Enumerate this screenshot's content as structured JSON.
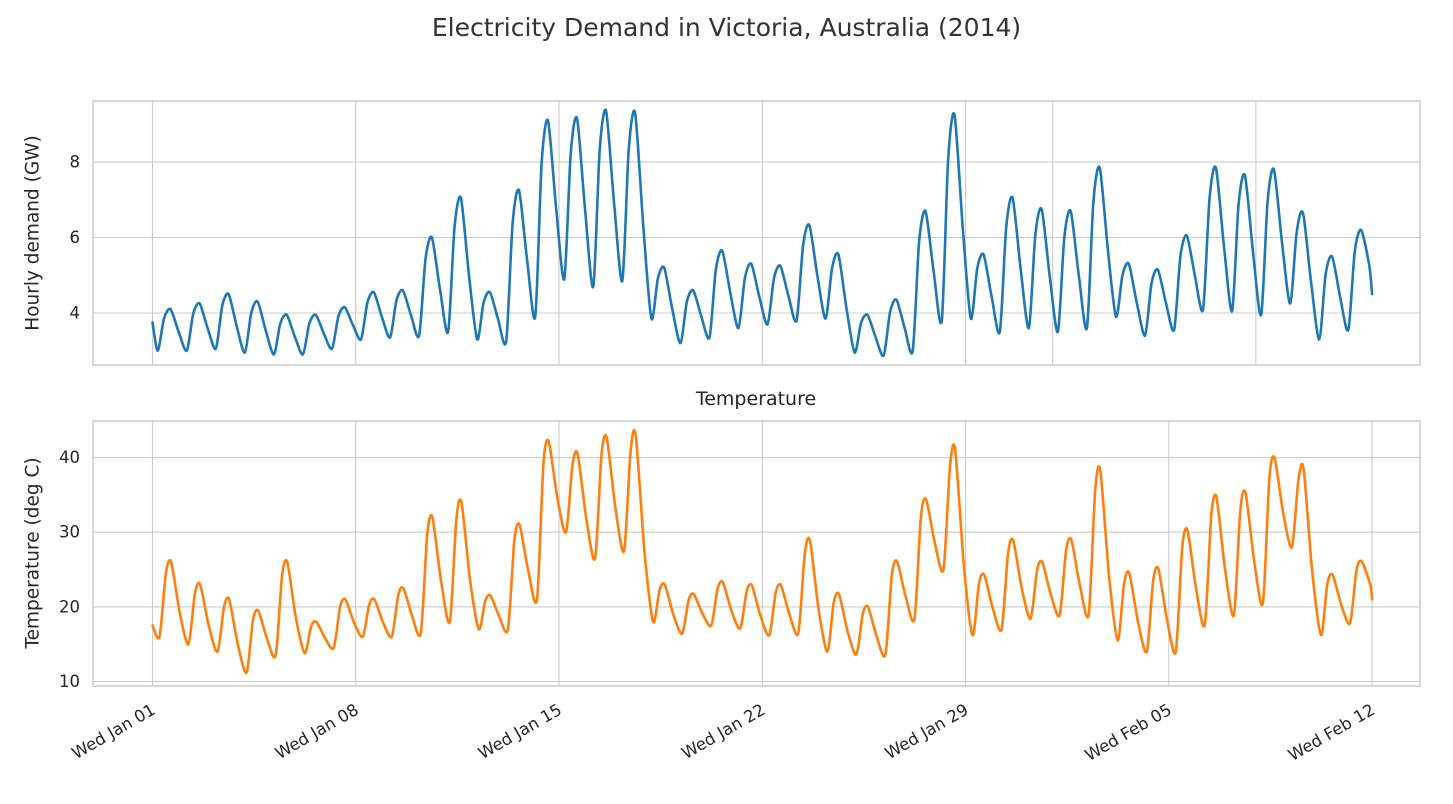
{
  "figure": {
    "title": "Electricity Demand in Victoria, Australia (2014)",
    "background_color": "#ffffff",
    "grid_color": "#cccccc",
    "spine_color": "#c7c7c7",
    "text_color": "#262626"
  },
  "x_axis": {
    "tick_labels": [
      "Wed Jan 01",
      "Wed Jan 08",
      "Wed Jan 15",
      "Wed Jan 22",
      "Wed Jan 29",
      "Wed Feb 05",
      "Wed Feb 12"
    ],
    "tick_days": [
      0,
      7,
      14,
      21,
      28,
      35,
      42
    ],
    "xlim_days": [
      -2.05,
      43.65
    ],
    "label_rotation_deg": 30
  },
  "chart_data": [
    {
      "type": "line",
      "name": "hourly-demand",
      "title": "",
      "ylabel": "Hourly demand (GW)",
      "unit": "GW",
      "color": "#1f77b4",
      "yticks": [
        4,
        6,
        8
      ],
      "ylim": [
        2.62,
        9.62
      ],
      "grid_on": true,
      "grid_days": [
        0,
        7,
        14,
        21,
        28,
        31,
        38
      ],
      "legend": "none",
      "start_value": 3.75,
      "end_day": 42.0,
      "end_value": 4.5,
      "daily_envelope": [
        {
          "date": "Jan 01",
          "min": 3.0,
          "max": 4.1
        },
        {
          "date": "Jan 02",
          "min": 3.0,
          "max": 4.25
        },
        {
          "date": "Jan 03",
          "min": 3.05,
          "max": 4.5
        },
        {
          "date": "Jan 04",
          "min": 2.95,
          "max": 4.3
        },
        {
          "date": "Jan 05",
          "min": 2.9,
          "max": 3.95
        },
        {
          "date": "Jan 06",
          "min": 2.9,
          "max": 3.95
        },
        {
          "date": "Jan 07",
          "min": 3.05,
          "max": 4.15
        },
        {
          "date": "Jan 08",
          "min": 3.3,
          "max": 4.55
        },
        {
          "date": "Jan 09",
          "min": 3.35,
          "max": 4.6
        },
        {
          "date": "Jan 10",
          "min": 3.4,
          "max": 6.0
        },
        {
          "date": "Jan 11",
          "min": 3.5,
          "max": 7.05
        },
        {
          "date": "Jan 12",
          "min": 3.3,
          "max": 4.55
        },
        {
          "date": "Jan 13",
          "min": 3.25,
          "max": 7.25
        },
        {
          "date": "Jan 14",
          "min": 3.9,
          "max": 9.1
        },
        {
          "date": "Jan 15",
          "min": 4.9,
          "max": 9.15
        },
        {
          "date": "Jan 16",
          "min": 4.7,
          "max": 9.35
        },
        {
          "date": "Jan 17",
          "min": 4.85,
          "max": 9.3
        },
        {
          "date": "Jan 18",
          "min": 3.85,
          "max": 5.2
        },
        {
          "date": "Jan 19",
          "min": 3.2,
          "max": 4.6
        },
        {
          "date": "Jan 20",
          "min": 3.35,
          "max": 5.65
        },
        {
          "date": "Jan 21",
          "min": 3.6,
          "max": 5.3
        },
        {
          "date": "Jan 22",
          "min": 3.7,
          "max": 5.25
        },
        {
          "date": "Jan 23",
          "min": 3.8,
          "max": 6.33
        },
        {
          "date": "Jan 24",
          "min": 3.85,
          "max": 5.55
        },
        {
          "date": "Jan 25",
          "min": 2.95,
          "max": 3.95
        },
        {
          "date": "Jan 26",
          "min": 2.87,
          "max": 4.35
        },
        {
          "date": "Jan 27",
          "min": 3.0,
          "max": 6.7
        },
        {
          "date": "Jan 28",
          "min": 3.8,
          "max": 9.25
        },
        {
          "date": "Jan 29",
          "min": 3.85,
          "max": 5.55
        },
        {
          "date": "Jan 30",
          "min": 3.5,
          "max": 7.05
        },
        {
          "date": "Jan 31",
          "min": 3.6,
          "max": 6.75
        },
        {
          "date": "Feb 01",
          "min": 3.5,
          "max": 6.7
        },
        {
          "date": "Feb 02",
          "min": 3.6,
          "max": 7.85
        },
        {
          "date": "Feb 03",
          "min": 3.9,
          "max": 5.3
        },
        {
          "date": "Feb 04",
          "min": 3.4,
          "max": 5.15
        },
        {
          "date": "Feb 05",
          "min": 3.55,
          "max": 6.05
        },
        {
          "date": "Feb 06",
          "min": 4.1,
          "max": 7.85
        },
        {
          "date": "Feb 07",
          "min": 4.05,
          "max": 7.65
        },
        {
          "date": "Feb 08",
          "min": 3.95,
          "max": 7.8
        },
        {
          "date": "Feb 09",
          "min": 4.25,
          "max": 6.65
        },
        {
          "date": "Feb 10",
          "min": 3.3,
          "max": 5.5
        },
        {
          "date": "Feb 11",
          "min": 3.55,
          "max": 6.2
        }
      ]
    },
    {
      "type": "line",
      "name": "temperature",
      "title": "Temperature",
      "ylabel": "Temperature (deg C)",
      "unit": "deg C",
      "color": "#ff7f0e",
      "yticks": [
        10,
        20,
        30,
        40
      ],
      "ylim": [
        9.4,
        44.9
      ],
      "grid_on": true,
      "grid_days": [
        0,
        7,
        14,
        21,
        28,
        35,
        42
      ],
      "legend": "none",
      "start_value": 17.5,
      "end_day": 42.0,
      "end_value": 21.0,
      "daily_envelope": [
        {
          "date": "Jan 01",
          "min": 16.0,
          "max": 26.0
        },
        {
          "date": "Jan 02",
          "min": 15.0,
          "max": 23.0
        },
        {
          "date": "Jan 03",
          "min": 14.0,
          "max": 21.0
        },
        {
          "date": "Jan 04",
          "min": 11.2,
          "max": 19.5
        },
        {
          "date": "Jan 05",
          "min": 13.5,
          "max": 26.0
        },
        {
          "date": "Jan 06",
          "min": 13.8,
          "max": 18.0
        },
        {
          "date": "Jan 07",
          "min": 14.5,
          "max": 21.0
        },
        {
          "date": "Jan 08",
          "min": 16.0,
          "max": 21.0
        },
        {
          "date": "Jan 09",
          "min": 16.0,
          "max": 22.5
        },
        {
          "date": "Jan 10",
          "min": 16.5,
          "max": 32.0
        },
        {
          "date": "Jan 11",
          "min": 18.0,
          "max": 34.0
        },
        {
          "date": "Jan 12",
          "min": 17.0,
          "max": 21.5
        },
        {
          "date": "Jan 13",
          "min": 17.0,
          "max": 31.0
        },
        {
          "date": "Jan 14",
          "min": 21.0,
          "max": 42.2
        },
        {
          "date": "Jan 15",
          "min": 30.0,
          "max": 40.5
        },
        {
          "date": "Jan 16",
          "min": 26.5,
          "max": 42.7
        },
        {
          "date": "Jan 17",
          "min": 27.5,
          "max": 43.0
        },
        {
          "date": "Jan 18",
          "min": 18.0,
          "max": 23.0
        },
        {
          "date": "Jan 19",
          "min": 16.4,
          "max": 21.7
        },
        {
          "date": "Jan 20",
          "min": 17.5,
          "max": 23.3
        },
        {
          "date": "Jan 21",
          "min": 17.1,
          "max": 22.9
        },
        {
          "date": "Jan 22",
          "min": 16.2,
          "max": 22.9
        },
        {
          "date": "Jan 23",
          "min": 16.5,
          "max": 28.9
        },
        {
          "date": "Jan 24",
          "min": 14.0,
          "max": 21.7
        },
        {
          "date": "Jan 25",
          "min": 13.6,
          "max": 20.0
        },
        {
          "date": "Jan 26",
          "min": 13.6,
          "max": 26.1
        },
        {
          "date": "Jan 27",
          "min": 18.4,
          "max": 34.4
        },
        {
          "date": "Jan 28",
          "min": 25.0,
          "max": 41.1
        },
        {
          "date": "Jan 29",
          "min": 16.2,
          "max": 24.3
        },
        {
          "date": "Jan 30",
          "min": 17.0,
          "max": 28.9
        },
        {
          "date": "Jan 31",
          "min": 18.4,
          "max": 26.0
        },
        {
          "date": "Feb 01",
          "min": 18.9,
          "max": 29.0
        },
        {
          "date": "Feb 02",
          "min": 19.0,
          "max": 38.3
        },
        {
          "date": "Feb 03",
          "min": 15.5,
          "max": 24.5
        },
        {
          "date": "Feb 04",
          "min": 14.0,
          "max": 25.1
        },
        {
          "date": "Feb 05",
          "min": 14.0,
          "max": 30.3
        },
        {
          "date": "Feb 06",
          "min": 17.6,
          "max": 34.7
        },
        {
          "date": "Feb 07",
          "min": 18.9,
          "max": 35.3
        },
        {
          "date": "Feb 08",
          "min": 20.5,
          "max": 40.0
        },
        {
          "date": "Feb 09",
          "min": 28.0,
          "max": 38.5
        },
        {
          "date": "Feb 10",
          "min": 16.2,
          "max": 24.3
        },
        {
          "date": "Feb 11",
          "min": 17.8,
          "max": 26.1
        }
      ]
    }
  ]
}
